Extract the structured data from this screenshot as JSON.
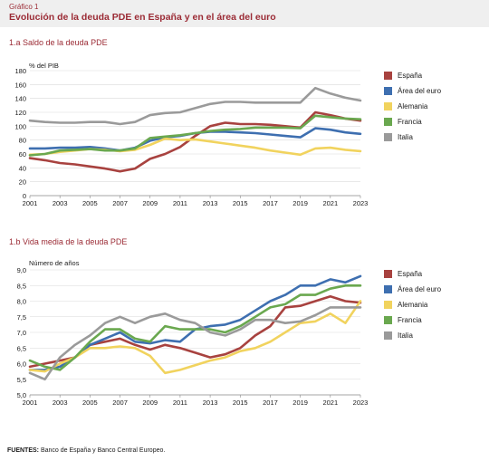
{
  "figure": {
    "label": "Gráfico 1",
    "title": "Evolución de la deuda PDE en España y en el área del euro"
  },
  "sources": {
    "label": "FUENTES:",
    "text": "Banco de España y Banco Central Europeo."
  },
  "colors": {
    "espana": "#a8423f",
    "area_euro": "#3e6fb0",
    "alemania": "#f1d35e",
    "francia": "#6aa84f",
    "italia": "#9a9a9a"
  },
  "chart_data": [
    {
      "id": "a",
      "type": "line",
      "panel_title": "1.a  Saldo de la deuda PDE",
      "ylabel": "% del PIB",
      "x": [
        2001,
        2002,
        2003,
        2004,
        2005,
        2006,
        2007,
        2008,
        2009,
        2010,
        2011,
        2012,
        2013,
        2014,
        2015,
        2016,
        2017,
        2018,
        2019,
        2020,
        2021,
        2022,
        2023
      ],
      "xticks": [
        "2001",
        "2003",
        "2005",
        "2007",
        "2009",
        "2011",
        "2013",
        "2015",
        "2017",
        "2019",
        "2021",
        "2023"
      ],
      "ylim": [
        0,
        180
      ],
      "yticks": [
        "0",
        "20",
        "40",
        "60",
        "80",
        "100",
        "120",
        "140",
        "160",
        "180"
      ],
      "grid": true,
      "legend_position": "right",
      "series": [
        {
          "name": "España",
          "color_key": "espana",
          "values": [
            54,
            51,
            47,
            45,
            42,
            39,
            35,
            39,
            53,
            60,
            70,
            86,
            100,
            105,
            103,
            103,
            102,
            100,
            98,
            120,
            116,
            111,
            108
          ]
        },
        {
          "name": "Área del euro",
          "color_key": "area_euro",
          "values": [
            68,
            68,
            69,
            69,
            70,
            68,
            65,
            69,
            79,
            84,
            86,
            90,
            92,
            92,
            91,
            90,
            88,
            86,
            84,
            97,
            95,
            91,
            89
          ]
        },
        {
          "name": "Alemania",
          "color_key": "alemania",
          "values": [
            59,
            60,
            63,
            65,
            67,
            66,
            64,
            66,
            73,
            82,
            80,
            81,
            78,
            75,
            72,
            69,
            65,
            62,
            59,
            68,
            69,
            66,
            64
          ]
        },
        {
          "name": "Francia",
          "color_key": "francia",
          "values": [
            58,
            60,
            65,
            66,
            67,
            65,
            65,
            68,
            83,
            85,
            87,
            90,
            93,
            95,
            96,
            98,
            98,
            98,
            97,
            115,
            113,
            111,
            110
          ]
        },
        {
          "name": "Italia",
          "color_key": "italia",
          "values": [
            108,
            106,
            105,
            105,
            106,
            106,
            103,
            106,
            116,
            119,
            120,
            126,
            132,
            135,
            135,
            134,
            134,
            134,
            134,
            155,
            147,
            141,
            137
          ]
        }
      ]
    },
    {
      "id": "b",
      "type": "line",
      "panel_title": "1.b  Vida media de la deuda PDE",
      "ylabel": "Número de años",
      "x": [
        2001,
        2002,
        2003,
        2004,
        2005,
        2006,
        2007,
        2008,
        2009,
        2010,
        2011,
        2012,
        2013,
        2014,
        2015,
        2016,
        2017,
        2018,
        2019,
        2020,
        2021,
        2022,
        2023
      ],
      "xticks": [
        "2001",
        "2003",
        "2005",
        "2007",
        "2009",
        "2011",
        "2013",
        "2015",
        "2017",
        "2019",
        "2021",
        "2023"
      ],
      "ylim": [
        5.0,
        9.0
      ],
      "yticks": [
        "5,0",
        "5,5",
        "6,0",
        "6,5",
        "7,0",
        "7,5",
        "8,0",
        "8,5",
        "9,0"
      ],
      "grid": true,
      "legend_position": "right",
      "series": [
        {
          "name": "España",
          "color_key": "espana",
          "values": [
            5.9,
            6.0,
            6.1,
            6.2,
            6.6,
            6.7,
            6.8,
            6.6,
            6.45,
            6.6,
            6.5,
            6.35,
            6.2,
            6.3,
            6.5,
            6.9,
            7.2,
            7.8,
            7.85,
            8.0,
            8.15,
            8.0,
            7.95
          ]
        },
        {
          "name": "Área del euro",
          "color_key": "area_euro",
          "values": [
            5.8,
            5.8,
            5.9,
            6.2,
            6.6,
            6.8,
            7.0,
            6.7,
            6.65,
            6.75,
            6.7,
            7.1,
            7.2,
            7.25,
            7.4,
            7.7,
            8.0,
            8.2,
            8.5,
            8.5,
            8.7,
            8.6,
            8.8
          ]
        },
        {
          "name": "Alemania",
          "color_key": "alemania",
          "values": [
            5.8,
            5.75,
            6.0,
            6.2,
            6.5,
            6.5,
            6.55,
            6.5,
            6.25,
            5.7,
            5.8,
            5.95,
            6.1,
            6.2,
            6.4,
            6.5,
            6.7,
            7.0,
            7.3,
            7.35,
            7.6,
            7.3,
            8.0
          ]
        },
        {
          "name": "Francia",
          "color_key": "francia",
          "values": [
            6.1,
            5.9,
            5.8,
            6.2,
            6.7,
            7.1,
            7.1,
            6.8,
            6.7,
            7.2,
            7.1,
            7.1,
            7.1,
            7.0,
            7.2,
            7.5,
            7.8,
            7.9,
            8.2,
            8.2,
            8.4,
            8.5,
            8.5
          ]
        },
        {
          "name": "Italia",
          "color_key": "italia",
          "values": [
            5.7,
            5.5,
            6.2,
            6.6,
            6.9,
            7.3,
            7.5,
            7.3,
            7.5,
            7.6,
            7.4,
            7.3,
            7.0,
            6.9,
            7.1,
            7.4,
            7.4,
            7.3,
            7.35,
            7.55,
            7.8,
            7.8,
            7.8
          ]
        }
      ]
    }
  ]
}
